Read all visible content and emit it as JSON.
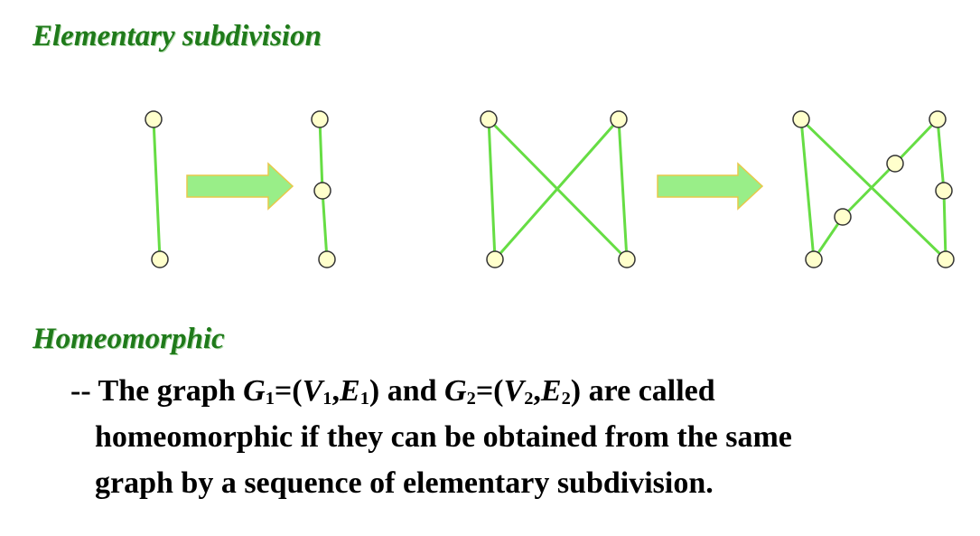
{
  "headings": {
    "subdivision": "Elementary subdivision",
    "homeomorphic": "Homeomorphic"
  },
  "definition": {
    "dash": "--",
    "line1_prefix": " The graph ",
    "g1_name": "G",
    "g1_sub": "1",
    "g1_open": "=(",
    "v1_name": "V",
    "v1_sub": "1",
    "comma1": ",",
    "e1_name": "E",
    "e1_sub": "1",
    "close1": ")",
    "and": " and ",
    "g2_name": "G",
    "g2_sub": "2",
    "g2_open": "=(",
    "v2_name": "V",
    "v2_sub": "2",
    "comma2": ",",
    "e2_name": "E",
    "e2_sub": "2",
    "close2": ")",
    "line1_suffix": " are called",
    "line2": "homeomorphic  if they can be obtained from the same",
    "line3": "graph by a sequence of elementary subdivision."
  },
  "colors": {
    "edge": "#66dd44",
    "vertex_fill": "#ffffcc",
    "vertex_stroke": "#333333",
    "arrow_fill": "#99ee88",
    "arrow_stroke": "#e8c84a",
    "heading": "#1f7a1a"
  }
}
